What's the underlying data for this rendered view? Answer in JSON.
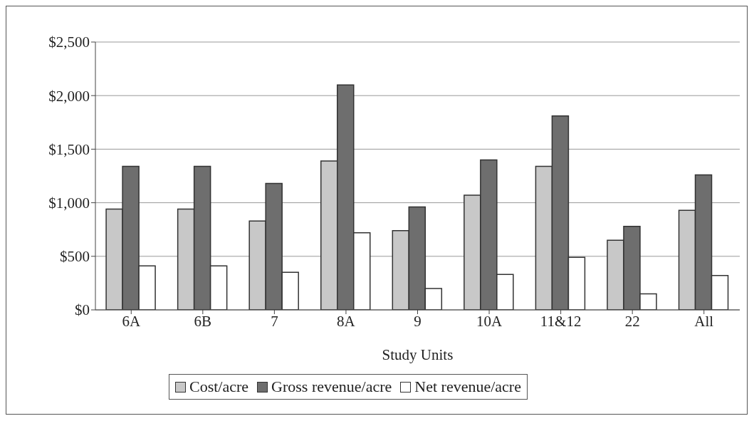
{
  "chart_data": {
    "type": "bar",
    "xlabel": "Study Units",
    "categories": [
      "6A",
      "6B",
      "7",
      "8A",
      "9",
      "10A",
      "11&12",
      "22",
      "All"
    ],
    "series": [
      {
        "name": "Cost/acre",
        "color": "#c8c8c8",
        "values": [
          940,
          940,
          830,
          1390,
          740,
          1070,
          1340,
          650,
          930
        ]
      },
      {
        "name": "Gross revenue/acre",
        "color": "#6e6e6e",
        "values": [
          1340,
          1340,
          1180,
          2100,
          960,
          1400,
          1810,
          780,
          1260
        ]
      },
      {
        "name": "Net revenue/acre",
        "color": "#ffffff",
        "values": [
          410,
          410,
          350,
          720,
          200,
          330,
          490,
          150,
          320
        ]
      }
    ],
    "ylim": [
      0,
      2500
    ],
    "yticks": [
      {
        "value": 0,
        "label": "$0"
      },
      {
        "value": 500,
        "label": "$500"
      },
      {
        "value": 1000,
        "label": "$1,000"
      },
      {
        "value": 1500,
        "label": "$1,500"
      },
      {
        "value": 2000,
        "label": "$2,000"
      },
      {
        "value": 2500,
        "label": "$2,500"
      }
    ],
    "grid": "y",
    "legend": "bottom"
  }
}
